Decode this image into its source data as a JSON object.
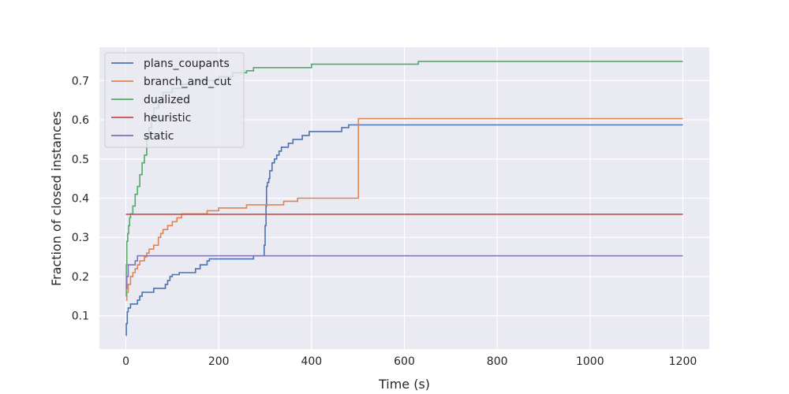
{
  "chart_data": {
    "type": "line",
    "step": true,
    "xlabel": "Time (s)",
    "ylabel": "Fraction of closed instances",
    "xlim": [
      -57,
      1257
    ],
    "ylim": [
      0.015,
      0.785
    ],
    "xticks": [
      0,
      200,
      400,
      600,
      800,
      1000,
      1200
    ],
    "yticks": [
      0.1,
      0.2,
      0.3,
      0.4,
      0.5,
      0.6,
      0.7
    ],
    "grid": true,
    "legend_position": "top-left",
    "series": [
      {
        "name": "plans_coupants",
        "color": "#4c72b0",
        "points": [
          [
            0,
            0.05
          ],
          [
            1,
            0.08
          ],
          [
            3,
            0.11
          ],
          [
            5,
            0.12
          ],
          [
            10,
            0.13
          ],
          [
            20,
            0.13
          ],
          [
            25,
            0.14
          ],
          [
            30,
            0.15
          ],
          [
            35,
            0.16
          ],
          [
            50,
            0.16
          ],
          [
            60,
            0.17
          ],
          [
            80,
            0.17
          ],
          [
            85,
            0.18
          ],
          [
            90,
            0.19
          ],
          [
            95,
            0.2
          ],
          [
            100,
            0.205
          ],
          [
            115,
            0.21
          ],
          [
            145,
            0.21
          ],
          [
            150,
            0.22
          ],
          [
            160,
            0.23
          ],
          [
            170,
            0.23
          ],
          [
            175,
            0.24
          ],
          [
            180,
            0.245
          ],
          [
            270,
            0.245
          ],
          [
            275,
            0.253
          ],
          [
            295,
            0.253
          ],
          [
            298,
            0.28
          ],
          [
            300,
            0.33
          ],
          [
            302,
            0.38
          ],
          [
            303,
            0.43
          ],
          [
            305,
            0.44
          ],
          [
            308,
            0.45
          ],
          [
            310,
            0.47
          ],
          [
            315,
            0.49
          ],
          [
            320,
            0.5
          ],
          [
            325,
            0.51
          ],
          [
            330,
            0.52
          ],
          [
            335,
            0.53
          ],
          [
            350,
            0.54
          ],
          [
            360,
            0.55
          ],
          [
            380,
            0.56
          ],
          [
            395,
            0.57
          ],
          [
            465,
            0.58
          ],
          [
            480,
            0.587
          ],
          [
            1200,
            0.587
          ]
        ]
      },
      {
        "name": "branch_and_cut",
        "color": "#dd8452",
        "points": [
          [
            0,
            0.14
          ],
          [
            2,
            0.16
          ],
          [
            5,
            0.18
          ],
          [
            10,
            0.2
          ],
          [
            15,
            0.21
          ],
          [
            20,
            0.22
          ],
          [
            25,
            0.23
          ],
          [
            30,
            0.24
          ],
          [
            40,
            0.25
          ],
          [
            45,
            0.26
          ],
          [
            50,
            0.27
          ],
          [
            60,
            0.28
          ],
          [
            70,
            0.3
          ],
          [
            75,
            0.31
          ],
          [
            80,
            0.32
          ],
          [
            90,
            0.33
          ],
          [
            100,
            0.34
          ],
          [
            110,
            0.35
          ],
          [
            120,
            0.36
          ],
          [
            175,
            0.368
          ],
          [
            200,
            0.375
          ],
          [
            260,
            0.383
          ],
          [
            340,
            0.392
          ],
          [
            370,
            0.4
          ],
          [
            500,
            0.4
          ],
          [
            501,
            0.603
          ],
          [
            1200,
            0.603
          ]
        ]
      },
      {
        "name": "dualized",
        "color": "#55a868",
        "points": [
          [
            0,
            0.15
          ],
          [
            1,
            0.23
          ],
          [
            2,
            0.29
          ],
          [
            4,
            0.31
          ],
          [
            6,
            0.33
          ],
          [
            8,
            0.35
          ],
          [
            10,
            0.36
          ],
          [
            15,
            0.38
          ],
          [
            20,
            0.41
          ],
          [
            25,
            0.43
          ],
          [
            30,
            0.46
          ],
          [
            35,
            0.49
          ],
          [
            40,
            0.51
          ],
          [
            45,
            0.55
          ],
          [
            50,
            0.58
          ],
          [
            55,
            0.61
          ],
          [
            60,
            0.63
          ],
          [
            70,
            0.65
          ],
          [
            80,
            0.67
          ],
          [
            100,
            0.68
          ],
          [
            120,
            0.69
          ],
          [
            150,
            0.7
          ],
          [
            200,
            0.71
          ],
          [
            230,
            0.72
          ],
          [
            260,
            0.725
          ],
          [
            275,
            0.733
          ],
          [
            400,
            0.742
          ],
          [
            630,
            0.749
          ],
          [
            1200,
            0.749
          ]
        ]
      },
      {
        "name": "heuristic",
        "color": "#c44e52",
        "points": [
          [
            0,
            0.359
          ],
          [
            1200,
            0.359
          ]
        ]
      },
      {
        "name": "static",
        "color": "#8172b3",
        "points": [
          [
            0,
            0.17
          ],
          [
            2,
            0.2
          ],
          [
            5,
            0.23
          ],
          [
            20,
            0.24
          ],
          [
            25,
            0.253
          ],
          [
            1200,
            0.253
          ]
        ]
      }
    ]
  }
}
